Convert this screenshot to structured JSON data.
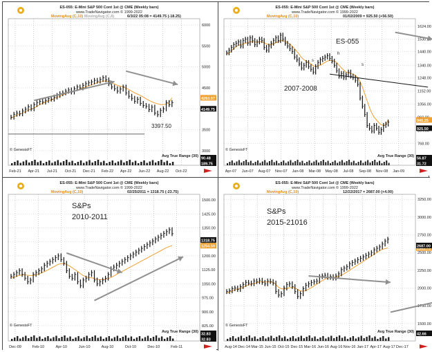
{
  "panels": [
    {
      "header_title": "ES-055: E-Mini S&P 500 Cont 1st @ CME  (Weekly bars)",
      "url": "www.TradeNavigator.com © 1999-2022",
      "legend_ma": "MovingAvg (C,10)",
      "legend_ma2": "MovingAvg (C,8)",
      "quote": "6/3/22 05:08 = 4149.75 (-18.25)",
      "footer_left": "© GenesisFT",
      "atr_label": "Avg True Range (30)",
      "price_tag_ma": "4263.07",
      "price_tag_last": "4149.75",
      "atr_tag1": "90.48",
      "atr_tag2": "189.75",
      "annotations": [
        "3397.50"
      ],
      "colors": {
        "bars": "#111111",
        "ma": "#f0a030",
        "arrow": "#909090"
      }
    },
    {
      "header_title": "ES-055: E-Mini S&P 500 Cont 1st @ CME  (Weekly bars)",
      "url": "www.TradeNavigator.com © 1999-2022",
      "legend_ma": "MovingAvg (C,10)",
      "quote": "01/02/2009 = 925.50 (+56.50)",
      "footer_left": "© GenesisFT",
      "atr_label": "Avg True Range (30)",
      "price_tag_ma": "940.25",
      "price_tag_last": "925.50",
      "atr_tag1": "56.87",
      "atr_tag2": "31.72",
      "annotations": [
        "ES-055",
        "2007-2008",
        "s",
        "h",
        "s"
      ],
      "colors": {
        "bars": "#111111",
        "ma": "#f0a030",
        "arrow": "#909090"
      }
    },
    {
      "header_title": "ES-055: E-Mini S&P 500 Cont 1st @ CME  (Weekly bars)",
      "url": "www.TradeNavigator.com © 1999-2022",
      "legend_ma": "MovingAvg (C,10)",
      "quote": "02/25/2011 = 1318.75 (-23.75)",
      "footer_left": "© GenesisFT",
      "atr_label": "Avg True Range (30)",
      "price_tag_ma": "1254.50",
      "price_tag_last": "1318.75",
      "atr_tag1": "32.83",
      "atr_tag2": "32.83",
      "annotations": [
        "S&Ps",
        "2010-2011"
      ],
      "colors": {
        "bars": "#111111",
        "ma": "#f0a030",
        "arrow": "#909090"
      }
    },
    {
      "header_title": "ES-055: E-Mini S&P 500 Cont 1st @ CME  (Weekly bars)",
      "url": "www.TradeNavigator.com © 1999-2022",
      "legend_ma": "MovingAvg (C,10)",
      "quote": "12/22/2017 = 2687.00 (+4.00)",
      "footer_left": "© GenesisFT",
      "atr_label": "Avg True Range (30)",
      "price_tag_ma": "2563.75",
      "price_tag_last": "2687.00",
      "atr_tag1": "42.66",
      "atr_tag2": "",
      "annotations": [
        "S&Ps",
        "2015-21016"
      ],
      "colors": {
        "bars": "#111111",
        "ma": "#f0a030",
        "arrow": "#909090"
      }
    }
  ],
  "chart_data": [
    {
      "type": "bar",
      "title": "ES-055: E-Mini S&P 500 Cont 1st @ CME  (Weekly bars)",
      "x_ticks": [
        "Feb-21",
        "Apr-21",
        "Jul-21",
        "Oct-21",
        "Dec-21",
        "Feb-22",
        "Apr-22",
        "Jun-22",
        "Aug-22",
        "Oct-22"
      ],
      "y_ticks": [
        "6000",
        "5500",
        "5000",
        "4500",
        "4000",
        "3500",
        "3000"
      ],
      "ylim": [
        2950,
        6150
      ],
      "x_count": 92,
      "closes": [
        3800,
        3870,
        3900,
        3880,
        3950,
        3990,
        4050,
        4000,
        4100,
        4150,
        4180,
        4160,
        4200,
        4240,
        4230,
        4280,
        4320,
        4360,
        4380,
        4420,
        4450,
        4400,
        4480,
        4520,
        4500,
        4560,
        4600,
        4620,
        4640,
        4680,
        4660,
        4700,
        4740,
        4690,
        4600,
        4520,
        4480,
        4420,
        4470,
        4520,
        4380,
        4300,
        4250,
        4180,
        4230,
        4130,
        4080,
        4060,
        3980,
        4040,
        3900,
        3860,
        3960,
        4000,
        4150,
        4100,
        4149.75
      ],
      "ma": [
        3780,
        3810,
        3850,
        3870,
        3900,
        3930,
        3970,
        3990,
        4020,
        4060,
        4100,
        4130,
        4160,
        4190,
        4210,
        4240,
        4270,
        4300,
        4330,
        4360,
        4390,
        4400,
        4420,
        4450,
        4470,
        4500,
        4520,
        4550,
        4570,
        4600,
        4620,
        4640,
        4660,
        4665,
        4650,
        4620,
        4590,
        4560,
        4540,
        4520,
        4490,
        4460,
        4420,
        4380,
        4350,
        4320,
        4280,
        4240,
        4200,
        4170,
        4140,
        4120,
        4100,
        4100,
        4110,
        4150,
        4263
      ],
      "trend_arrow_up": [
        [
          8,
          4200
        ],
        [
          36,
          4650
        ]
      ],
      "trend_arrow_down": [
        [
          40,
          4900
        ],
        [
          58,
          4580
        ]
      ],
      "hline": 3397.5
    },
    {
      "type": "bar",
      "title": "ES-055: E-Mini S&P 500 Cont 1st @ CME  (Weekly bars)",
      "x_ticks": [
        "Apr-07",
        "Jun-07",
        "Aug-07",
        "Nov-07",
        "Jan-08",
        "Mar-08",
        "May-08",
        "Jul-08",
        "Sep-08",
        "Nov-08",
        "Jan-09"
      ],
      "y_ticks": [
        "1624.00",
        "1530.00",
        "1440.00",
        "1340.00",
        "1248.00",
        "1152.00",
        "1056.00",
        "960.00",
        "864.00",
        "768.00"
      ],
      "ylim": [
        700,
        1680
      ],
      "x_count": 100,
      "closes": [
        1430,
        1450,
        1470,
        1490,
        1500,
        1510,
        1480,
        1520,
        1530,
        1500,
        1540,
        1520,
        1490,
        1510,
        1530,
        1520,
        1470,
        1450,
        1480,
        1500,
        1520,
        1540,
        1520,
        1560,
        1530,
        1500,
        1480,
        1460,
        1440,
        1400,
        1380,
        1350,
        1320,
        1340,
        1360,
        1330,
        1310,
        1290,
        1330,
        1360,
        1380,
        1390,
        1400,
        1410,
        1390,
        1370,
        1340,
        1300,
        1260,
        1280,
        1250,
        1270,
        1290,
        1260,
        1250,
        1230,
        1200,
        1100,
        1040,
        980,
        900,
        880,
        860,
        900,
        880,
        850,
        870,
        900,
        910,
        925.5
      ],
      "ma": [
        1420,
        1430,
        1445,
        1460,
        1475,
        1485,
        1490,
        1495,
        1500,
        1505,
        1510,
        1512,
        1510,
        1508,
        1510,
        1512,
        1505,
        1495,
        1490,
        1490,
        1495,
        1505,
        1510,
        1520,
        1520,
        1515,
        1505,
        1495,
        1480,
        1460,
        1440,
        1420,
        1395,
        1380,
        1370,
        1360,
        1350,
        1335,
        1330,
        1335,
        1340,
        1350,
        1360,
        1370,
        1375,
        1375,
        1370,
        1360,
        1340,
        1320,
        1305,
        1290,
        1285,
        1280,
        1275,
        1265,
        1250,
        1220,
        1180,
        1130,
        1080,
        1030,
        990,
        960,
        940,
        920,
        905,
        900,
        905,
        940.25
      ],
      "neckline": [
        [
          44,
          1275
        ],
        [
          86,
          1180
        ]
      ],
      "trend_arrow_down": [
        [
          72,
          1580
        ],
        [
          88,
          1530
        ]
      ]
    },
    {
      "type": "bar",
      "title": "ES-055: E-Mini S&P 500 Cont 1st @ CME  (Weekly bars)",
      "x_ticks": [
        "Dec-09",
        "Feb-10",
        "Apr-10",
        "Jun-10",
        "Aug-10",
        "Oct-10",
        "Dec-10",
        "Feb-11"
      ],
      "y_ticks": [
        "1500.00",
        "1425.00",
        "1350.00",
        "1275.00",
        "1200.00",
        "1125.00",
        "1050.00",
        "975.00",
        "900.00",
        "825.00"
      ],
      "ylim": [
        810,
        1530
      ],
      "x_count": 68,
      "closes": [
        1090,
        1100,
        1110,
        1120,
        1100,
        1080,
        1060,
        1070,
        1100,
        1110,
        1120,
        1130,
        1150,
        1160,
        1170,
        1180,
        1190,
        1200,
        1180,
        1160,
        1120,
        1090,
        1080,
        1100,
        1060,
        1040,
        1070,
        1080,
        1100,
        1110,
        1070,
        1050,
        1060,
        1070,
        1080,
        1100,
        1130,
        1140,
        1150,
        1160,
        1170,
        1180,
        1190,
        1200,
        1210,
        1220,
        1230,
        1240,
        1250,
        1260,
        1270,
        1280,
        1290,
        1300,
        1310,
        1320,
        1330,
        1340,
        1318.75
      ],
      "ma": [
        1080,
        1085,
        1090,
        1095,
        1098,
        1098,
        1096,
        1094,
        1095,
        1098,
        1102,
        1108,
        1115,
        1122,
        1130,
        1138,
        1146,
        1154,
        1158,
        1158,
        1154,
        1146,
        1136,
        1126,
        1116,
        1104,
        1094,
        1088,
        1084,
        1082,
        1078,
        1074,
        1072,
        1072,
        1074,
        1078,
        1084,
        1092,
        1100,
        1108,
        1116,
        1124,
        1132,
        1140,
        1148,
        1156,
        1164,
        1172,
        1180,
        1188,
        1196,
        1204,
        1212,
        1220,
        1228,
        1236,
        1244,
        1250,
        1254.5
      ],
      "trend_arrow_down": [
        [
          20,
          1215
        ],
        [
          40,
          1110
        ]
      ],
      "trend_arrow_up": [
        [
          30,
          960
        ],
        [
          62,
          1195
        ]
      ]
    },
    {
      "type": "bar",
      "title": "ES-055: E-Mini S&P 500 Cont 1st @ CME  (Weekly bars)",
      "x_ticks": [
        "Aug-14",
        "Dec-14",
        "Mar-15",
        "Jun-15",
        "Oct-15",
        "Dec-15",
        "Mar-16",
        "Jun-16",
        "Aug-16",
        "Nov-16",
        "Jan-17",
        "Apr-17",
        "Aug-17",
        "Dec-17"
      ],
      "y_ticks": [
        "3250.00",
        "3000.00",
        "2750.00",
        "2500.00",
        "2250.00",
        "2000.00",
        "1750.00",
        "1500.00"
      ],
      "ylim": [
        1430,
        3320
      ],
      "x_count": 180,
      "closes": [
        1950,
        1960,
        1990,
        2000,
        1980,
        2020,
        2050,
        2080,
        2070,
        2060,
        2100,
        2090,
        2110,
        2080,
        2060,
        2100,
        2090,
        2070,
        1950,
        1900,
        1920,
        2000,
        2050,
        2060,
        2020,
        1950,
        1880,
        1920,
        1990,
        2040,
        2060,
        2080,
        2090,
        2100,
        2160,
        2170,
        2180,
        2150,
        2160,
        2140,
        2170,
        2200,
        2260,
        2280,
        2300,
        2340,
        2360,
        2380,
        2400,
        2420,
        2440,
        2460,
        2480,
        2500,
        2540,
        2560,
        2580,
        2620,
        2660,
        2687
      ],
      "ma": [
        1930,
        1945,
        1960,
        1975,
        1985,
        1995,
        2010,
        2030,
        2045,
        2055,
        2065,
        2075,
        2085,
        2090,
        2085,
        2085,
        2085,
        2080,
        2050,
        2010,
        1990,
        1985,
        1990,
        2005,
        2010,
        2000,
        1980,
        1960,
        1955,
        1965,
        1985,
        2005,
        2030,
        2055,
        2080,
        2105,
        2125,
        2140,
        2145,
        2150,
        2155,
        2165,
        2180,
        2200,
        2225,
        2250,
        2275,
        2300,
        2325,
        2350,
        2375,
        2400,
        2425,
        2450,
        2475,
        2500,
        2525,
        2545,
        2555,
        2563.75
      ],
      "trend_arrow_down": [
        [
          30,
          2170
        ],
        [
          60,
          2080
        ]
      ],
      "trend_arrow_up": [
        [
          60,
          1660
        ],
        [
          98,
          1990
        ]
      ]
    }
  ]
}
